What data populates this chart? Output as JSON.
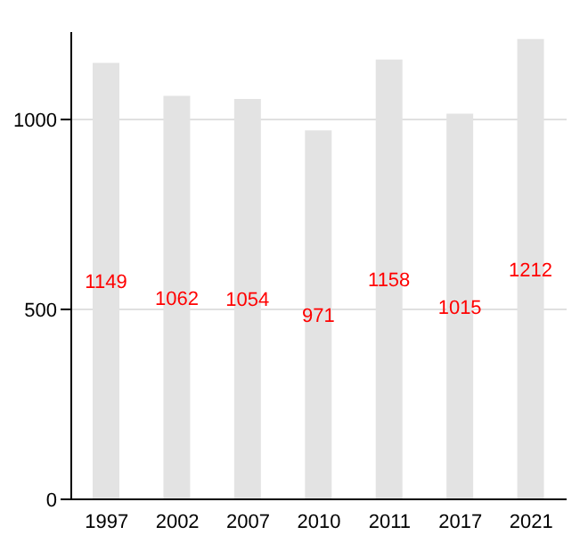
{
  "chart_data": {
    "type": "bar",
    "categories": [
      "1997",
      "2002",
      "2007",
      "2010",
      "2011",
      "2017",
      "2021"
    ],
    "values": [
      1149,
      1062,
      1054,
      971,
      1158,
      1015,
      1212
    ],
    "color": "#e3e3e3",
    "ylim": [
      0,
      1230
    ],
    "yticks": [
      0,
      500,
      1000
    ],
    "grid": "y",
    "data_labels": true
  }
}
